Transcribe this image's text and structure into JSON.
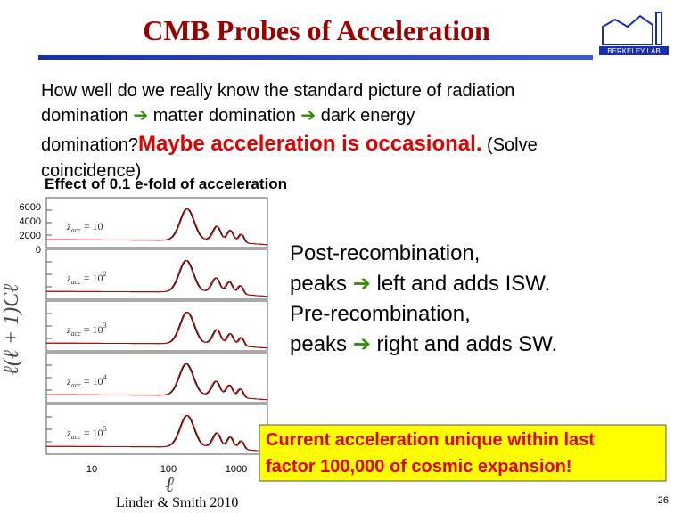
{
  "header": {
    "title": "CMB Probes of Acceleration",
    "logo": "BERKELEY LAB"
  },
  "body": {
    "line1": "How well do we really know the standard picture of radiation",
    "line2": [
      "domination",
      "matter domination",
      "dark energy"
    ],
    "line3": {
      "lead": "domination?",
      "highlight": "Maybe acceleration is occasional.",
      "tail": "(Solve"
    },
    "line4": "coincidence)"
  },
  "figure": {
    "caption": "Effect of 0.1 e-fold of acceleration",
    "yticks": [
      "6000",
      "4000",
      "2000",
      "0"
    ],
    "xticks": [
      "10",
      "100",
      "1000"
    ],
    "ylabel": "ℓ(ℓ + 1)Cℓ",
    "xlabel": "ℓ",
    "panels": [
      {
        "var": "z",
        "sub": "acc",
        "eq": "= 10"
      },
      {
        "var": "z",
        "sub": "acc",
        "eq": "= 10",
        "sup": "2"
      },
      {
        "var": "z",
        "sub": "acc",
        "eq": "= 10",
        "sup": "3"
      },
      {
        "var": "z",
        "sub": "acc",
        "eq": "= 10",
        "sup": "4"
      },
      {
        "var": "z",
        "sub": "acc",
        "eq": "= 10",
        "sup": "5"
      }
    ],
    "credit": "Linder & Smith 2010"
  },
  "notes": [
    "Post-recombination,",
    [
      "peaks",
      "left and adds ISW."
    ],
    "Pre-recombination,",
    [
      "peaks",
      "right and adds SW."
    ]
  ],
  "callout": [
    "Current acceleration unique within last",
    "factor 100,000 of cosmic expansion!"
  ],
  "page_number": "26"
}
